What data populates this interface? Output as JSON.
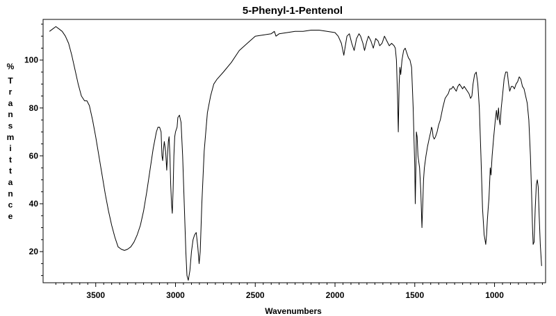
{
  "chart_data": {
    "type": "line",
    "title": "5-Phenyl-1-Pentenol",
    "xlabel": "Wavenumbers",
    "ylabel": "% Transmittance",
    "xlim": [
      3830,
      680
    ],
    "ylim": [
      7,
      117
    ],
    "x_ticks": [
      3500,
      3000,
      2500,
      2000,
      1500,
      1000
    ],
    "y_ticks": [
      20,
      40,
      60,
      80,
      100
    ],
    "grid": false,
    "series": [
      {
        "values": [
          [
            3790,
            112
          ],
          [
            3770,
            113
          ],
          [
            3750,
            114
          ],
          [
            3730,
            113
          ],
          [
            3710,
            112
          ],
          [
            3690,
            110
          ],
          [
            3670,
            107
          ],
          [
            3650,
            102
          ],
          [
            3630,
            96
          ],
          [
            3610,
            90
          ],
          [
            3590,
            85
          ],
          [
            3570,
            83
          ],
          [
            3555,
            83
          ],
          [
            3540,
            81
          ],
          [
            3520,
            75
          ],
          [
            3500,
            68
          ],
          [
            3480,
            60
          ],
          [
            3460,
            52
          ],
          [
            3440,
            44
          ],
          [
            3420,
            37
          ],
          [
            3400,
            31
          ],
          [
            3380,
            26
          ],
          [
            3360,
            22
          ],
          [
            3340,
            21
          ],
          [
            3320,
            20.5
          ],
          [
            3300,
            21
          ],
          [
            3280,
            22
          ],
          [
            3260,
            24
          ],
          [
            3240,
            27
          ],
          [
            3220,
            31
          ],
          [
            3200,
            37
          ],
          [
            3180,
            45
          ],
          [
            3160,
            54
          ],
          [
            3140,
            63
          ],
          [
            3120,
            70
          ],
          [
            3110,
            72
          ],
          [
            3100,
            72
          ],
          [
            3090,
            70
          ],
          [
            3085,
            60
          ],
          [
            3080,
            58
          ],
          [
            3075,
            63
          ],
          [
            3070,
            66
          ],
          [
            3062,
            62
          ],
          [
            3055,
            54
          ],
          [
            3050,
            60
          ],
          [
            3045,
            66
          ],
          [
            3040,
            68
          ],
          [
            3035,
            60
          ],
          [
            3030,
            48
          ],
          [
            3025,
            40
          ],
          [
            3020,
            36
          ],
          [
            3015,
            46
          ],
          [
            3010,
            60
          ],
          [
            3005,
            68
          ],
          [
            3000,
            70
          ],
          [
            2990,
            72
          ],
          [
            2985,
            76
          ],
          [
            2975,
            77
          ],
          [
            2965,
            74
          ],
          [
            2955,
            60
          ],
          [
            2945,
            40
          ],
          [
            2935,
            20
          ],
          [
            2928,
            10
          ],
          [
            2920,
            8
          ],
          [
            2910,
            12
          ],
          [
            2900,
            20
          ],
          [
            2890,
            25
          ],
          [
            2880,
            27
          ],
          [
            2870,
            28
          ],
          [
            2860,
            22
          ],
          [
            2852,
            15
          ],
          [
            2845,
            20
          ],
          [
            2835,
            40
          ],
          [
            2820,
            62
          ],
          [
            2800,
            78
          ],
          [
            2780,
            85
          ],
          [
            2760,
            90
          ],
          [
            2740,
            92
          ],
          [
            2700,
            95
          ],
          [
            2650,
            99
          ],
          [
            2600,
            104
          ],
          [
            2550,
            107
          ],
          [
            2500,
            110
          ],
          [
            2450,
            110.5
          ],
          [
            2400,
            111
          ],
          [
            2380,
            112
          ],
          [
            2370,
            110
          ],
          [
            2350,
            111
          ],
          [
            2300,
            111.5
          ],
          [
            2250,
            112
          ],
          [
            2200,
            112
          ],
          [
            2150,
            112.5
          ],
          [
            2100,
            112.5
          ],
          [
            2050,
            112
          ],
          [
            2000,
            111.5
          ],
          [
            1980,
            110
          ],
          [
            1960,
            107
          ],
          [
            1945,
            102
          ],
          [
            1935,
            106
          ],
          [
            1925,
            110
          ],
          [
            1910,
            111
          ],
          [
            1895,
            107
          ],
          [
            1880,
            104
          ],
          [
            1865,
            109
          ],
          [
            1850,
            111
          ],
          [
            1840,
            110
          ],
          [
            1825,
            107
          ],
          [
            1815,
            104
          ],
          [
            1800,
            108
          ],
          [
            1790,
            110
          ],
          [
            1775,
            108
          ],
          [
            1760,
            105
          ],
          [
            1745,
            109
          ],
          [
            1730,
            108
          ],
          [
            1720,
            106
          ],
          [
            1705,
            107
          ],
          [
            1690,
            110
          ],
          [
            1675,
            108
          ],
          [
            1660,
            106
          ],
          [
            1645,
            107
          ],
          [
            1630,
            106
          ],
          [
            1622,
            105
          ],
          [
            1615,
            100
          ],
          [
            1608,
            85
          ],
          [
            1603,
            70
          ],
          [
            1598,
            90
          ],
          [
            1593,
            97
          ],
          [
            1588,
            94
          ],
          [
            1580,
            100
          ],
          [
            1570,
            104
          ],
          [
            1560,
            105
          ],
          [
            1550,
            103
          ],
          [
            1540,
            101
          ],
          [
            1530,
            100
          ],
          [
            1520,
            97
          ],
          [
            1510,
            80
          ],
          [
            1500,
            55
          ],
          [
            1497,
            40
          ],
          [
            1493,
            55
          ],
          [
            1490,
            70
          ],
          [
            1485,
            68
          ],
          [
            1480,
            60
          ],
          [
            1470,
            55
          ],
          [
            1462,
            45
          ],
          [
            1455,
            30
          ],
          [
            1450,
            40
          ],
          [
            1445,
            50
          ],
          [
            1440,
            55
          ],
          [
            1430,
            60
          ],
          [
            1420,
            64
          ],
          [
            1410,
            67
          ],
          [
            1400,
            70
          ],
          [
            1395,
            72
          ],
          [
            1390,
            71
          ],
          [
            1385,
            68
          ],
          [
            1378,
            67
          ],
          [
            1370,
            68
          ],
          [
            1360,
            70
          ],
          [
            1350,
            73
          ],
          [
            1340,
            75
          ],
          [
            1325,
            80
          ],
          [
            1310,
            84
          ],
          [
            1300,
            85
          ],
          [
            1290,
            86
          ],
          [
            1280,
            88
          ],
          [
            1270,
            88
          ],
          [
            1260,
            89
          ],
          [
            1250,
            88
          ],
          [
            1240,
            87
          ],
          [
            1230,
            89
          ],
          [
            1220,
            90
          ],
          [
            1210,
            89
          ],
          [
            1200,
            88
          ],
          [
            1190,
            89
          ],
          [
            1180,
            88
          ],
          [
            1170,
            87
          ],
          [
            1160,
            86
          ],
          [
            1150,
            84
          ],
          [
            1142,
            85
          ],
          [
            1135,
            90
          ],
          [
            1125,
            94
          ],
          [
            1115,
            95
          ],
          [
            1105,
            90
          ],
          [
            1095,
            80
          ],
          [
            1085,
            60
          ],
          [
            1075,
            38
          ],
          [
            1065,
            27
          ],
          [
            1060,
            25
          ],
          [
            1055,
            23
          ],
          [
            1050,
            27
          ],
          [
            1045,
            33
          ],
          [
            1040,
            38
          ],
          [
            1035,
            42
          ],
          [
            1030,
            50
          ],
          [
            1027,
            55
          ],
          [
            1022,
            52
          ],
          [
            1015,
            60
          ],
          [
            1005,
            68
          ],
          [
            995,
            75
          ],
          [
            988,
            79
          ],
          [
            982,
            75
          ],
          [
            975,
            80
          ],
          [
            970,
            75
          ],
          [
            965,
            73
          ],
          [
            958,
            80
          ],
          [
            950,
            85
          ],
          [
            940,
            92
          ],
          [
            930,
            95
          ],
          [
            920,
            95
          ],
          [
            912,
            90
          ],
          [
            905,
            87
          ],
          [
            895,
            89
          ],
          [
            885,
            89
          ],
          [
            875,
            88
          ],
          [
            865,
            90
          ],
          [
            855,
            91
          ],
          [
            845,
            93
          ],
          [
            835,
            92
          ],
          [
            825,
            89
          ],
          [
            815,
            88
          ],
          [
            805,
            85
          ],
          [
            795,
            82
          ],
          [
            785,
            75
          ],
          [
            775,
            60
          ],
          [
            768,
            45
          ],
          [
            762,
            30
          ],
          [
            758,
            23
          ],
          [
            752,
            24
          ],
          [
            745,
            38
          ],
          [
            738,
            48
          ],
          [
            732,
            50
          ],
          [
            726,
            47
          ],
          [
            720,
            35
          ],
          [
            713,
            23
          ],
          [
            705,
            14
          ]
        ]
      }
    ]
  }
}
